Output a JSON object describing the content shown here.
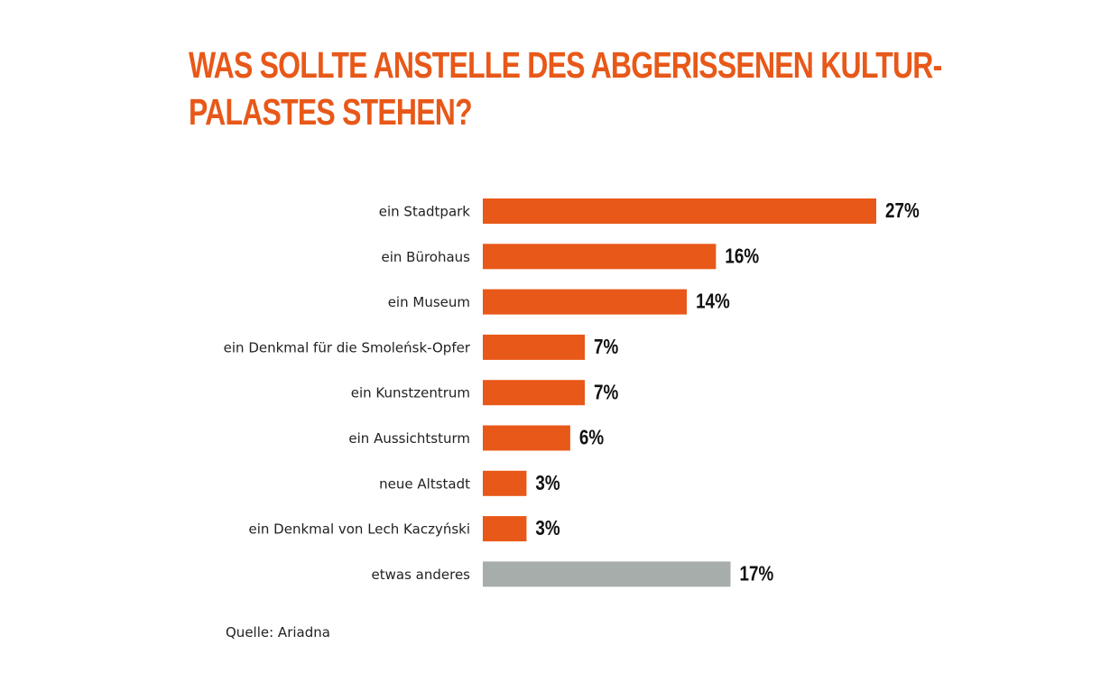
{
  "title_lines": [
    "Was sollte anstelle des abgerissenen Kultur-",
    "palastes stehen?"
  ],
  "source": "Quelle: Ariadna",
  "colors": {
    "accent": "#E85818",
    "other": "#A7ADAB",
    "text": "#222222"
  },
  "chart_data": {
    "type": "bar",
    "orientation": "horizontal",
    "title": "Was sollte anstelle des abgerissenen Kulturpalastes stehen?",
    "xlabel": "",
    "ylabel": "",
    "unit": "%",
    "xlim": [
      0,
      27
    ],
    "grid": false,
    "legend": "none",
    "categories": [
      "ein Stadtpark",
      "ein Bürohaus",
      "ein Museum",
      "ein Denkmal für die Smoleńsk-Opfer",
      "ein Kunstzentrum",
      "ein Aussichtsturm",
      "neue Altstadt",
      "ein Denkmal von Lech Kaczyński",
      "etwas anderes"
    ],
    "values": [
      27,
      16,
      14,
      7,
      7,
      6,
      3,
      3,
      17
    ],
    "value_labels": [
      "27%",
      "16%",
      "14%",
      "7%",
      "7%",
      "6%",
      "3%",
      "3%",
      "17%"
    ],
    "highlight": [
      false,
      false,
      false,
      false,
      false,
      false,
      false,
      false,
      true
    ]
  }
}
